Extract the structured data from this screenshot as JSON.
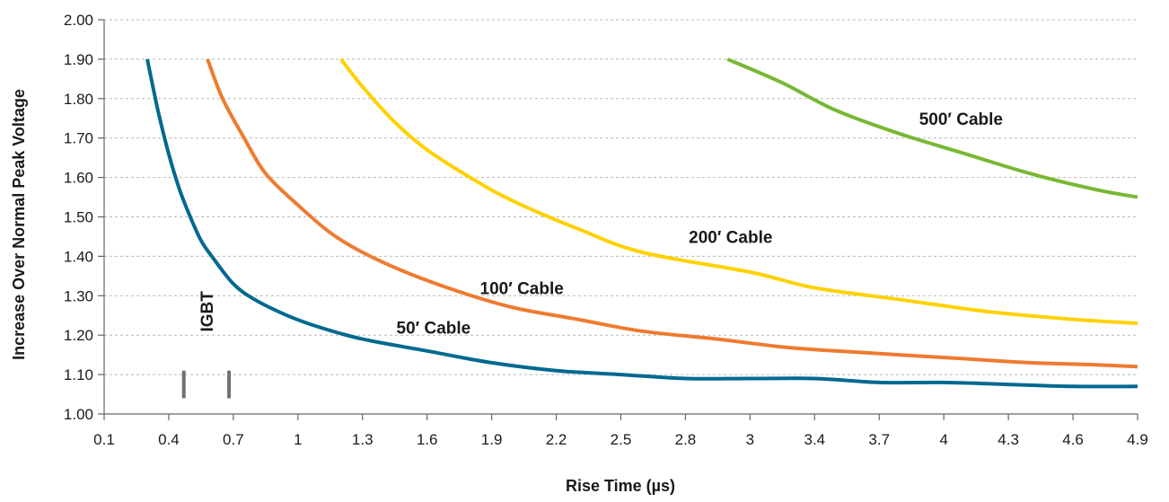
{
  "chart_data": {
    "type": "line",
    "title": "",
    "xlabel": "Rise Time (µs)",
    "ylabel": "Increase Over Normal Peak Voltage",
    "x_ticks": [
      "0.1",
      "0.4",
      "0.7",
      "1",
      "1.3",
      "1.6",
      "1.9",
      "2.2",
      "2.5",
      "2.8",
      "3",
      "3.4",
      "3.7",
      "4",
      "4.3",
      "4.6",
      "4.9"
    ],
    "y_ticks": [
      "1.00",
      "1.10",
      "1.20",
      "1.30",
      "1.40",
      "1.50",
      "1.60",
      "1.70",
      "1.80",
      "1.90",
      "2.00"
    ],
    "ylim": [
      1.0,
      2.0
    ],
    "grid": "horizontal-dashed",
    "legend": "none",
    "series": [
      {
        "name": "50′ Cable",
        "color": "#00698f",
        "points": [
          [
            0.3,
            1.9
          ],
          [
            0.35,
            1.77
          ],
          [
            0.4,
            1.66
          ],
          [
            0.45,
            1.57
          ],
          [
            0.5,
            1.5
          ],
          [
            0.55,
            1.44
          ],
          [
            0.6,
            1.4
          ],
          [
            0.7,
            1.33
          ],
          [
            0.8,
            1.29
          ],
          [
            0.95,
            1.25
          ],
          [
            1.1,
            1.22
          ],
          [
            1.3,
            1.19
          ],
          [
            1.6,
            1.16
          ],
          [
            1.9,
            1.13
          ],
          [
            2.2,
            1.11
          ],
          [
            2.5,
            1.1
          ],
          [
            2.8,
            1.09
          ],
          [
            3.0,
            1.09
          ],
          [
            3.4,
            1.09
          ],
          [
            3.7,
            1.08
          ],
          [
            4.0,
            1.08
          ],
          [
            4.3,
            1.075
          ],
          [
            4.6,
            1.07
          ],
          [
            4.9,
            1.07
          ]
        ],
        "label_at": [
          1.63,
          1.22
        ]
      },
      {
        "name": "100′ Cable",
        "color": "#ee7b30",
        "points": [
          [
            0.58,
            1.9
          ],
          [
            0.65,
            1.8
          ],
          [
            0.75,
            1.7
          ],
          [
            0.85,
            1.61
          ],
          [
            1.0,
            1.53
          ],
          [
            1.15,
            1.46
          ],
          [
            1.3,
            1.41
          ],
          [
            1.5,
            1.36
          ],
          [
            1.75,
            1.31
          ],
          [
            2.0,
            1.27
          ],
          [
            2.3,
            1.24
          ],
          [
            2.6,
            1.21
          ],
          [
            2.9,
            1.19
          ],
          [
            3.2,
            1.17
          ],
          [
            3.5,
            1.16
          ],
          [
            3.8,
            1.15
          ],
          [
            4.1,
            1.14
          ],
          [
            4.4,
            1.13
          ],
          [
            4.7,
            1.125
          ],
          [
            4.9,
            1.12
          ]
        ],
        "label_at": [
          2.04,
          1.32
        ]
      },
      {
        "name": "200′ Cable",
        "color": "#ffd100",
        "points": [
          [
            1.2,
            1.9
          ],
          [
            1.3,
            1.83
          ],
          [
            1.45,
            1.74
          ],
          [
            1.6,
            1.67
          ],
          [
            1.8,
            1.6
          ],
          [
            2.0,
            1.54
          ],
          [
            2.3,
            1.47
          ],
          [
            2.6,
            1.41
          ],
          [
            3.0,
            1.36
          ],
          [
            3.4,
            1.32
          ],
          [
            3.8,
            1.29
          ],
          [
            4.2,
            1.26
          ],
          [
            4.6,
            1.24
          ],
          [
            4.9,
            1.23
          ]
        ],
        "label_at": [
          2.94,
          1.45
        ]
      },
      {
        "name": "500′ Cable",
        "color": "#78b833",
        "points": [
          [
            2.93,
            1.9
          ],
          [
            3.2,
            1.84
          ],
          [
            3.5,
            1.77
          ],
          [
            3.8,
            1.71
          ],
          [
            4.1,
            1.66
          ],
          [
            4.4,
            1.61
          ],
          [
            4.7,
            1.57
          ],
          [
            4.9,
            1.55
          ]
        ],
        "label_at": [
          4.08,
          1.75
        ]
      }
    ],
    "annotation": {
      "text": "IGBT",
      "x_marks": [
        0.47,
        0.68
      ],
      "y_range": [
        1.04,
        1.11
      ]
    }
  }
}
